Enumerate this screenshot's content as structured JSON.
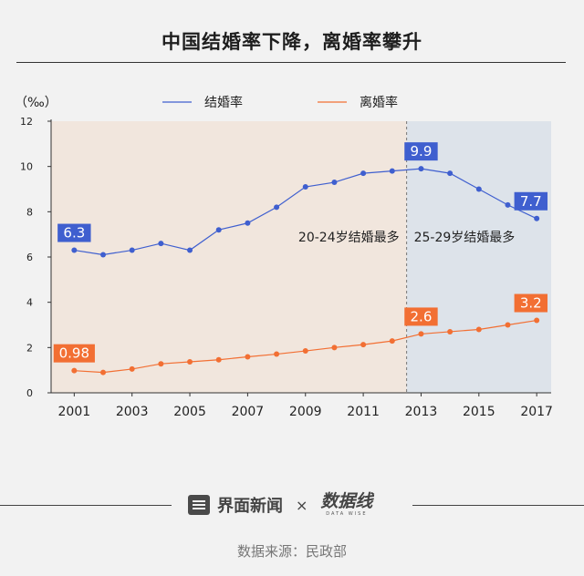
{
  "title": "中国结婚率下降，离婚率攀升",
  "brand": {
    "name": "界面新闻",
    "separator": "×",
    "partner": "数据线",
    "partner_sub": "DATA WISE"
  },
  "source": "数据来源：民政部",
  "chart_data": {
    "type": "line",
    "ylabel": "（‰）",
    "ylim": [
      0,
      12
    ],
    "yticks": [
      0,
      2,
      4,
      6,
      8,
      10,
      12
    ],
    "xlim": [
      2000.2,
      2017.5
    ],
    "xticks": [
      2001,
      2003,
      2005,
      2007,
      2009,
      2011,
      2013,
      2015,
      2017
    ],
    "x": [
      2001,
      2002,
      2003,
      2004,
      2005,
      2006,
      2007,
      2008,
      2009,
      2010,
      2011,
      2012,
      2013,
      2014,
      2015,
      2016,
      2017
    ],
    "series": [
      {
        "name": "结婚率",
        "color": "#3f5fcf",
        "values": [
          6.3,
          6.1,
          6.3,
          6.6,
          6.3,
          7.2,
          7.5,
          8.2,
          9.1,
          9.3,
          9.7,
          9.8,
          9.9,
          9.7,
          9.0,
          8.3,
          7.7
        ]
      },
      {
        "name": "离婚率",
        "color": "#f26f33",
        "values": [
          0.98,
          0.9,
          1.05,
          1.28,
          1.37,
          1.46,
          1.59,
          1.71,
          1.85,
          2.0,
          2.13,
          2.29,
          2.6,
          2.7,
          2.8,
          3.0,
          3.2
        ]
      }
    ],
    "point_labels": [
      {
        "series": 0,
        "x": 2001,
        "text": "6.3"
      },
      {
        "series": 0,
        "x": 2013,
        "text": "9.9"
      },
      {
        "series": 0,
        "x": 2017,
        "text": "7.7"
      },
      {
        "series": 1,
        "x": 2001,
        "text": "0.98"
      },
      {
        "series": 1,
        "x": 2013,
        "text": "2.6"
      },
      {
        "series": 1,
        "x": 2017,
        "text": "3.2"
      }
    ],
    "regions": [
      {
        "x0": 2000.2,
        "x1": 2012.5,
        "color": "#f1e6dd",
        "label": "20-24岁结婚最多"
      },
      {
        "x0": 2012.5,
        "x1": 2017.5,
        "color": "#dde3ea",
        "label": "25-29岁结婚最多"
      }
    ],
    "legend_position": "top-center",
    "grid": false
  }
}
